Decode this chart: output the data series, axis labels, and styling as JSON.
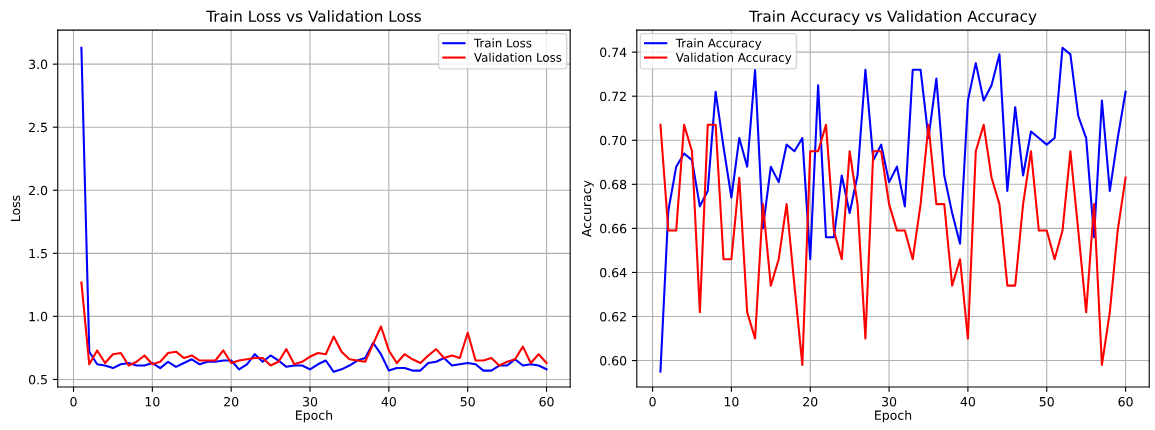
{
  "chart_data": [
    {
      "type": "line",
      "title": "Train Loss vs Validation Loss",
      "xlabel": "Epoch",
      "ylabel": "Loss",
      "x": [
        1,
        2,
        3,
        4,
        5,
        6,
        7,
        8,
        9,
        10,
        11,
        12,
        13,
        14,
        15,
        16,
        17,
        18,
        19,
        20,
        21,
        22,
        23,
        24,
        25,
        26,
        27,
        28,
        29,
        30,
        31,
        32,
        33,
        34,
        35,
        36,
        37,
        38,
        39,
        40,
        41,
        42,
        43,
        44,
        45,
        46,
        47,
        48,
        49,
        50,
        51,
        52,
        53,
        54,
        55,
        56,
        57,
        58,
        59,
        60
      ],
      "series": [
        {
          "name": "Train Loss",
          "color": "#0000ff",
          "values": [
            3.13,
            0.72,
            0.62,
            0.61,
            0.59,
            0.62,
            0.63,
            0.61,
            0.61,
            0.63,
            0.59,
            0.64,
            0.6,
            0.63,
            0.66,
            0.62,
            0.64,
            0.64,
            0.65,
            0.65,
            0.58,
            0.62,
            0.7,
            0.64,
            0.69,
            0.65,
            0.6,
            0.61,
            0.61,
            0.58,
            0.62,
            0.65,
            0.56,
            0.58,
            0.61,
            0.65,
            0.67,
            0.79,
            0.7,
            0.57,
            0.59,
            0.59,
            0.57,
            0.57,
            0.63,
            0.64,
            0.67,
            0.61,
            0.62,
            0.63,
            0.62,
            0.57,
            0.57,
            0.61,
            0.61,
            0.66,
            0.61,
            0.62,
            0.61,
            0.58
          ]
        },
        {
          "name": "Validation Loss",
          "color": "#ff0000",
          "values": [
            1.27,
            0.62,
            0.73,
            0.63,
            0.7,
            0.71,
            0.61,
            0.64,
            0.69,
            0.62,
            0.64,
            0.71,
            0.72,
            0.67,
            0.69,
            0.65,
            0.65,
            0.65,
            0.73,
            0.63,
            0.65,
            0.66,
            0.67,
            0.67,
            0.61,
            0.64,
            0.74,
            0.62,
            0.64,
            0.68,
            0.71,
            0.7,
            0.84,
            0.72,
            0.66,
            0.65,
            0.64,
            0.78,
            0.92,
            0.73,
            0.63,
            0.7,
            0.66,
            0.63,
            0.69,
            0.74,
            0.67,
            0.69,
            0.67,
            0.87,
            0.65,
            0.65,
            0.67,
            0.61,
            0.64,
            0.66,
            0.76,
            0.63,
            0.7,
            0.63
          ]
        }
      ],
      "xlim": [
        -2,
        63
      ],
      "ylim": [
        0.44,
        3.27
      ],
      "xticks": [
        0,
        10,
        20,
        30,
        40,
        50,
        60
      ],
      "yticks": [
        {
          "value": 0.5,
          "label": "0.5"
        },
        {
          "value": 1.0,
          "label": "1.0"
        },
        {
          "value": 1.5,
          "label": "1.5"
        },
        {
          "value": 2.0,
          "label": "2.0"
        },
        {
          "value": 2.5,
          "label": "2.5"
        },
        {
          "value": 3.0,
          "label": "3.0"
        }
      ],
      "grid": true,
      "legend": "top right",
      "line_style": "solid"
    },
    {
      "type": "line",
      "title": "Train Accuracy vs Validation Accuracy",
      "xlabel": "Epoch",
      "ylabel": "Accuracy",
      "x": [
        1,
        2,
        3,
        4,
        5,
        6,
        7,
        8,
        9,
        10,
        11,
        12,
        13,
        14,
        15,
        16,
        17,
        18,
        19,
        20,
        21,
        22,
        23,
        24,
        25,
        26,
        27,
        28,
        29,
        30,
        31,
        32,
        33,
        34,
        35,
        36,
        37,
        38,
        39,
        40,
        41,
        42,
        43,
        44,
        45,
        46,
        47,
        48,
        49,
        50,
        51,
        52,
        53,
        54,
        55,
        56,
        57,
        58,
        59,
        60
      ],
      "series": [
        {
          "name": "Train Accuracy",
          "color": "#0000ff",
          "values": [
            0.595,
            0.668,
            0.688,
            0.694,
            0.691,
            0.67,
            0.677,
            0.722,
            0.697,
            0.674,
            0.701,
            0.688,
            0.732,
            0.66,
            0.688,
            0.681,
            0.698,
            0.695,
            0.701,
            0.646,
            0.725,
            0.656,
            0.656,
            0.684,
            0.667,
            0.684,
            0.732,
            0.691,
            0.698,
            0.681,
            0.688,
            0.67,
            0.732,
            0.732,
            0.701,
            0.728,
            0.684,
            0.667,
            0.653,
            0.718,
            0.735,
            0.718,
            0.725,
            0.739,
            0.677,
            0.715,
            0.684,
            0.704,
            0.701,
            0.698,
            0.701,
            0.742,
            0.739,
            0.711,
            0.701,
            0.656,
            0.718,
            0.677,
            0.701,
            0.722
          ]
        },
        {
          "name": "Validation Accuracy",
          "color": "#ff0000",
          "values": [
            0.707,
            0.659,
            0.659,
            0.707,
            0.695,
            0.622,
            0.707,
            0.707,
            0.646,
            0.646,
            0.683,
            0.622,
            0.61,
            0.671,
            0.634,
            0.646,
            0.671,
            0.634,
            0.598,
            0.695,
            0.695,
            0.707,
            0.659,
            0.646,
            0.695,
            0.671,
            0.61,
            0.695,
            0.695,
            0.671,
            0.659,
            0.659,
            0.646,
            0.671,
            0.707,
            0.671,
            0.671,
            0.634,
            0.646,
            0.61,
            0.695,
            0.707,
            0.683,
            0.671,
            0.634,
            0.634,
            0.671,
            0.695,
            0.659,
            0.659,
            0.646,
            0.659,
            0.695,
            0.659,
            0.622,
            0.671,
            0.598,
            0.622,
            0.659,
            0.683
          ]
        }
      ],
      "xlim": [
        -2,
        63
      ],
      "ylim": [
        0.588,
        0.75
      ],
      "xticks": [
        0,
        10,
        20,
        30,
        40,
        50,
        60
      ],
      "yticks": [
        {
          "value": 0.6,
          "label": "0.60"
        },
        {
          "value": 0.62,
          "label": "0.62"
        },
        {
          "value": 0.64,
          "label": "0.64"
        },
        {
          "value": 0.66,
          "label": "0.66"
        },
        {
          "value": 0.68,
          "label": "0.68"
        },
        {
          "value": 0.7,
          "label": "0.70"
        },
        {
          "value": 0.72,
          "label": "0.72"
        },
        {
          "value": 0.74,
          "label": "0.74"
        }
      ],
      "grid": true,
      "legend": "top left",
      "line_style": "solid"
    }
  ]
}
